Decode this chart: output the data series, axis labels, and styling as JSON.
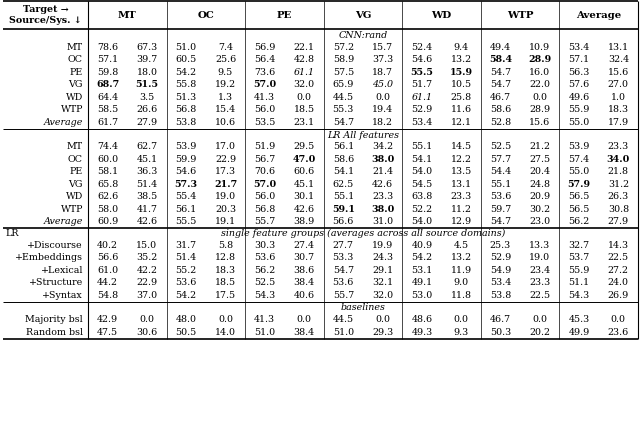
{
  "section1_title": "CNN:rand",
  "section1_rows": [
    [
      "MT",
      "78.6",
      "67.3",
      "51.0",
      "7.4",
      "56.9",
      "22.1",
      "57.2",
      "15.7",
      "52.4",
      "9.4",
      "49.4",
      "10.9",
      "53.4",
      "13.1"
    ],
    [
      "OC",
      "57.1",
      "39.7",
      "60.5",
      "25.6",
      "56.4",
      "42.8",
      "58.9",
      "37.3",
      "54.6",
      "13.2",
      "**58.4**",
      "**28.9**",
      "57.1",
      "32.4"
    ],
    [
      "PE",
      "59.8",
      "18.0",
      "54.2",
      "9.5",
      "73.6",
      "*61.1*",
      "57.5",
      "18.7",
      "**55.5**",
      "**15.9**",
      "54.7",
      "16.0",
      "56.3",
      "15.6"
    ],
    [
      "VG",
      "**68.7**",
      "**51.5**",
      "55.8",
      "19.2",
      "**57.0**",
      "32.0",
      "65.9",
      "*45.0*",
      "51.7",
      "10.5",
      "54.7",
      "22.0",
      "57.6",
      "27.0"
    ],
    [
      "WD",
      "64.4",
      "3.5",
      "51.3",
      "1.3",
      "41.3",
      "0.0",
      "44.5",
      "0.0",
      "*61.1*",
      "25.8",
      "46.7",
      "0.0",
      "49.6",
      "1.0"
    ],
    [
      "WTP",
      "58.5",
      "26.6",
      "56.8",
      "15.4",
      "56.0",
      "18.5",
      "55.3",
      "19.4",
      "52.9",
      "11.6",
      "58.6",
      "28.9",
      "55.9",
      "18.3"
    ],
    [
      "*Average*",
      "61.7",
      "27.9",
      "53.8",
      "10.6",
      "53.5",
      "23.1",
      "54.7",
      "18.2",
      "53.4",
      "12.1",
      "52.8",
      "15.6",
      "55.0",
      "17.9"
    ]
  ],
  "section2_title": "LR All features",
  "section2_rows": [
    [
      "MT",
      "74.4",
      "62.7",
      "53.9",
      "17.0",
      "51.9",
      "29.5",
      "56.1",
      "34.2",
      "55.1",
      "14.5",
      "52.5",
      "21.2",
      "53.9",
      "23.3"
    ],
    [
      "OC",
      "60.0",
      "45.1",
      "59.9",
      "22.9",
      "56.7",
      "**47.0**",
      "58.6",
      "**38.0**",
      "54.1",
      "12.2",
      "57.7",
      "27.5",
      "57.4",
      "**34.0**"
    ],
    [
      "PE",
      "58.1",
      "36.3",
      "54.6",
      "17.3",
      "70.6",
      "60.6",
      "54.1",
      "21.4",
      "54.0",
      "13.5",
      "54.4",
      "20.4",
      "55.0",
      "21.8"
    ],
    [
      "VG",
      "65.8",
      "51.4",
      "**57.3**",
      "**21.7**",
      "**57.0**",
      "45.1",
      "62.5",
      "42.6",
      "54.5",
      "13.1",
      "55.1",
      "24.8",
      "**57.9**",
      "31.2"
    ],
    [
      "WD",
      "62.6",
      "38.5",
      "55.4",
      "19.0",
      "56.0",
      "30.1",
      "55.1",
      "23.3",
      "63.8",
      "23.3",
      "53.6",
      "20.9",
      "56.5",
      "26.3"
    ],
    [
      "WTP",
      "58.0",
      "41.7",
      "56.1",
      "20.3",
      "56.8",
      "42.6",
      "**59.1**",
      "**38.0**",
      "52.2",
      "11.2",
      "59.7",
      "30.2",
      "56.5",
      "30.8"
    ],
    [
      "*Average*",
      "60.9",
      "42.6",
      "55.5",
      "19.1",
      "55.7",
      "38.9",
      "56.6",
      "31.0",
      "54.0",
      "12.9",
      "54.7",
      "23.0",
      "56.2",
      "27.9"
    ]
  ],
  "section3_title": "single feature groups (averages across all source domains)",
  "section3_rows": [
    [
      "+Discourse",
      "40.2",
      "15.0",
      "31.7",
      "5.8",
      "30.3",
      "27.4",
      "27.7",
      "19.9",
      "40.9",
      "4.5",
      "25.3",
      "13.3",
      "32.7",
      "14.3"
    ],
    [
      "+Embeddings",
      "56.6",
      "35.2",
      "51.4",
      "12.8",
      "53.6",
      "30.7",
      "53.3",
      "24.3",
      "54.2",
      "13.2",
      "52.9",
      "19.0",
      "53.7",
      "22.5"
    ],
    [
      "+Lexical",
      "61.0",
      "42.2",
      "55.2",
      "18.3",
      "56.2",
      "38.6",
      "54.7",
      "29.1",
      "53.1",
      "11.9",
      "54.9",
      "23.4",
      "55.9",
      "27.2"
    ],
    [
      "+Structure",
      "44.2",
      "22.9",
      "53.6",
      "18.5",
      "52.5",
      "38.4",
      "53.6",
      "32.1",
      "49.1",
      "9.0",
      "53.4",
      "23.3",
      "51.1",
      "24.0"
    ],
    [
      "+Syntax",
      "54.8",
      "37.0",
      "54.2",
      "17.5",
      "54.3",
      "40.6",
      "55.7",
      "32.0",
      "53.0",
      "11.8",
      "53.8",
      "22.5",
      "54.3",
      "26.9"
    ]
  ],
  "section4_title": "baselines",
  "section4_rows": [
    [
      "Majority bsl",
      "42.9",
      "0.0",
      "48.0",
      "0.0",
      "41.3",
      "0.0",
      "44.5",
      "0.0",
      "48.6",
      "0.0",
      "46.7",
      "0.0",
      "45.3",
      "0.0"
    ],
    [
      "Random bsl",
      "47.5",
      "30.6",
      "50.5",
      "14.0",
      "51.0",
      "38.4",
      "51.0",
      "29.3",
      "49.3",
      "9.3",
      "50.3",
      "20.2",
      "49.9",
      "23.6"
    ]
  ],
  "col_groups": [
    "MT",
    "OC",
    "PE",
    "VG",
    "WD",
    "WTP",
    "Average"
  ],
  "bg_color": "#ffffff",
  "fontsize": 6.8
}
